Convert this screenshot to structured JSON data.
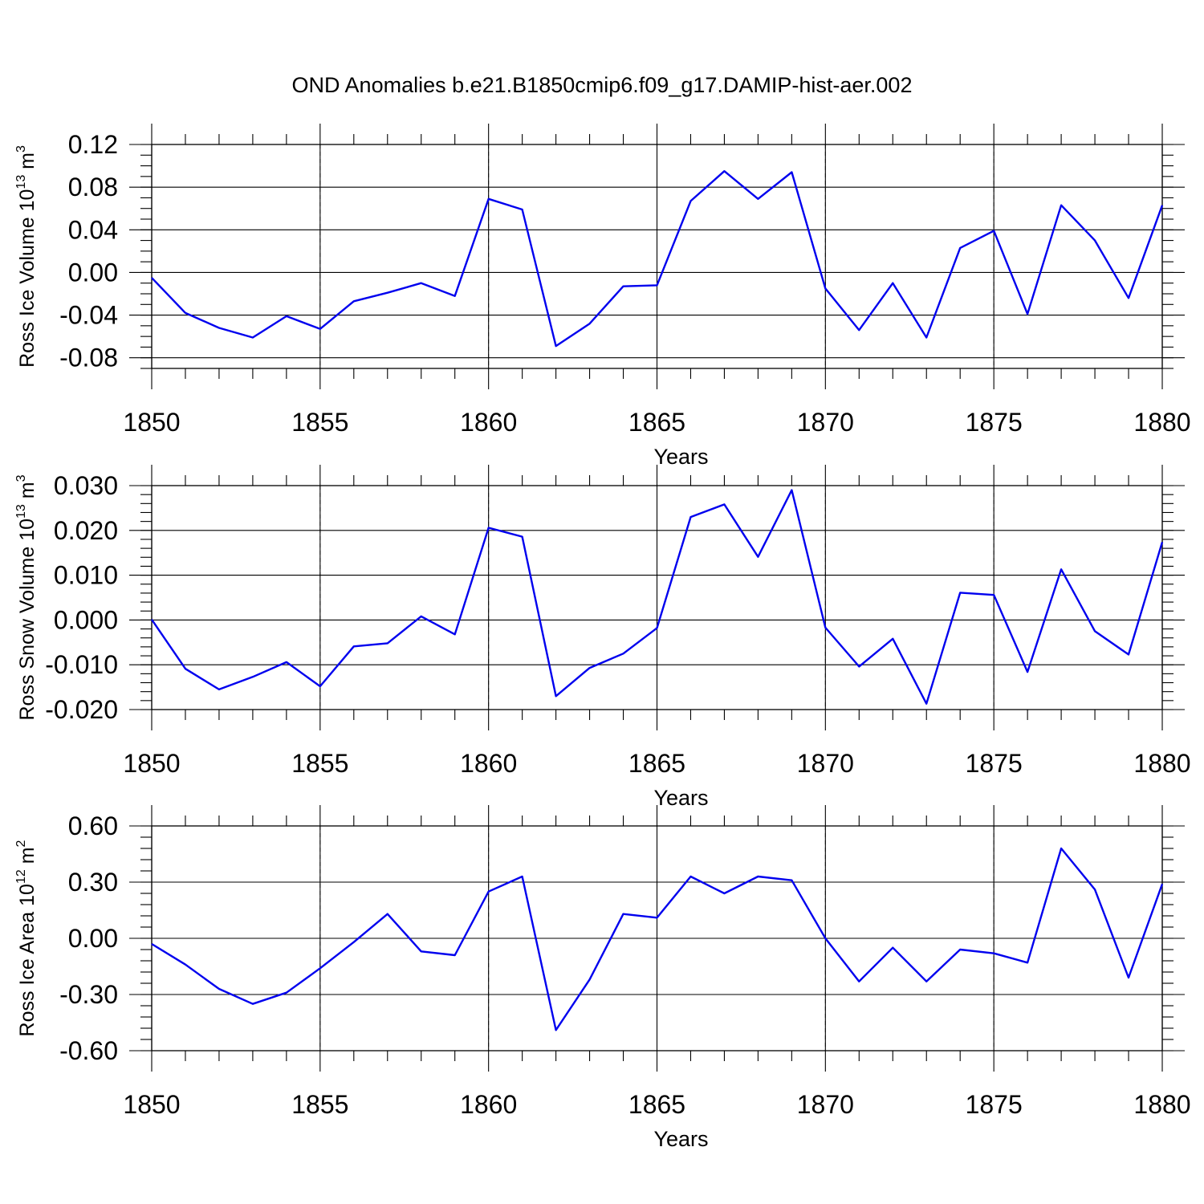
{
  "title": "OND Anomalies b.e21.B1850cmip6.f09_g17.DAMIP-hist-aer.002",
  "line_color": "#0000ee",
  "chart_data": [
    {
      "type": "line",
      "ylabel": "Ross Ice Volume 10",
      "ylabel_exp": "13",
      "ylabel_unit": " m",
      "ylabel_unit_exp": "3",
      "xlabel": "Years",
      "xlim": [
        1850,
        1880
      ],
      "ylim": [
        -0.09,
        0.12
      ],
      "y_ticks": [
        -0.08,
        -0.04,
        0.0,
        0.04,
        0.08,
        0.12
      ],
      "y_tick_labels": [
        "-0.08",
        "-0.04",
        "0.00",
        "0.04",
        "0.08",
        "0.12"
      ],
      "y_minor_step": 0.01,
      "x_ticks": [
        1850,
        1855,
        1860,
        1865,
        1870,
        1875,
        1880
      ],
      "x_tick_labels": [
        "1850",
        "1855",
        "1860",
        "1865",
        "1870",
        "1875",
        "1880"
      ],
      "x": [
        1850,
        1851,
        1852,
        1853,
        1854,
        1855,
        1856,
        1857,
        1858,
        1859,
        1860,
        1861,
        1862,
        1863,
        1864,
        1865,
        1866,
        1867,
        1868,
        1869,
        1870,
        1871,
        1872,
        1873,
        1874,
        1875,
        1876,
        1877,
        1878,
        1879,
        1880
      ],
      "values": [
        -0.005,
        -0.038,
        -0.052,
        -0.061,
        -0.041,
        -0.053,
        -0.027,
        -0.019,
        -0.01,
        -0.022,
        0.069,
        0.059,
        -0.069,
        -0.048,
        -0.013,
        -0.012,
        0.067,
        0.095,
        0.069,
        0.094,
        -0.015,
        -0.054,
        -0.01,
        -0.061,
        0.023,
        0.039,
        -0.039,
        0.063,
        0.03,
        -0.024,
        0.063
      ]
    },
    {
      "type": "line",
      "ylabel": "Ross Snow Volume 10",
      "ylabel_exp": "13",
      "ylabel_unit": " m",
      "ylabel_unit_exp": "3",
      "xlabel": "Years",
      "xlim": [
        1850,
        1880
      ],
      "ylim": [
        -0.02,
        0.03
      ],
      "y_ticks": [
        -0.02,
        -0.01,
        0.0,
        0.01,
        0.02,
        0.03
      ],
      "y_tick_labels": [
        "-0.020",
        "-0.010",
        "0.000",
        "0.010",
        "0.020",
        "0.030"
      ],
      "y_minor_step": 0.002,
      "x_ticks": [
        1850,
        1855,
        1860,
        1865,
        1870,
        1875,
        1880
      ],
      "x_tick_labels": [
        "1850",
        "1855",
        "1860",
        "1865",
        "1870",
        "1875",
        "1880"
      ],
      "x": [
        1850,
        1851,
        1852,
        1853,
        1854,
        1855,
        1856,
        1857,
        1858,
        1859,
        1860,
        1861,
        1862,
        1863,
        1864,
        1865,
        1866,
        1867,
        1868,
        1869,
        1870,
        1871,
        1872,
        1873,
        1874,
        1875,
        1876,
        1877,
        1878,
        1879,
        1880
      ],
      "values": [
        0.0001,
        -0.0109,
        -0.0155,
        -0.0127,
        -0.0094,
        -0.0148,
        -0.0059,
        -0.0052,
        0.0008,
        -0.0032,
        0.0206,
        0.0186,
        -0.017,
        -0.0107,
        -0.0075,
        -0.0018,
        0.023,
        0.0258,
        0.0141,
        0.029,
        -0.0017,
        -0.0104,
        -0.0042,
        -0.0187,
        0.0061,
        0.0056,
        -0.0116,
        0.0113,
        -0.0025,
        -0.0077,
        0.0174
      ]
    },
    {
      "type": "line",
      "ylabel": "Ross Ice Area 10",
      "ylabel_exp": "12",
      "ylabel_unit": " m",
      "ylabel_unit_exp": "2",
      "xlabel": "Years",
      "xlim": [
        1850,
        1880
      ],
      "ylim": [
        -0.6,
        0.6
      ],
      "y_ticks": [
        -0.6,
        -0.3,
        0.0,
        0.3,
        0.6
      ],
      "y_tick_labels": [
        "-0.60",
        "-0.30",
        "0.00",
        "0.30",
        "0.60"
      ],
      "y_minor_step": 0.06,
      "x_ticks": [
        1850,
        1855,
        1860,
        1865,
        1870,
        1875,
        1880
      ],
      "x_tick_labels": [
        "1850",
        "1855",
        "1860",
        "1865",
        "1870",
        "1875",
        "1880"
      ],
      "x": [
        1850,
        1851,
        1852,
        1853,
        1854,
        1855,
        1856,
        1857,
        1858,
        1859,
        1860,
        1861,
        1862,
        1863,
        1864,
        1865,
        1866,
        1867,
        1868,
        1869,
        1870,
        1871,
        1872,
        1873,
        1874,
        1875,
        1876,
        1877,
        1878,
        1879,
        1880
      ],
      "values": [
        -0.03,
        -0.14,
        -0.27,
        -0.35,
        -0.29,
        -0.16,
        -0.02,
        0.13,
        -0.07,
        -0.09,
        0.25,
        0.33,
        -0.49,
        -0.22,
        0.13,
        0.11,
        0.33,
        0.24,
        0.33,
        0.31,
        -0.0,
        -0.23,
        -0.05,
        -0.23,
        -0.06,
        -0.08,
        -0.13,
        0.48,
        0.26,
        -0.21,
        0.29
      ]
    }
  ]
}
